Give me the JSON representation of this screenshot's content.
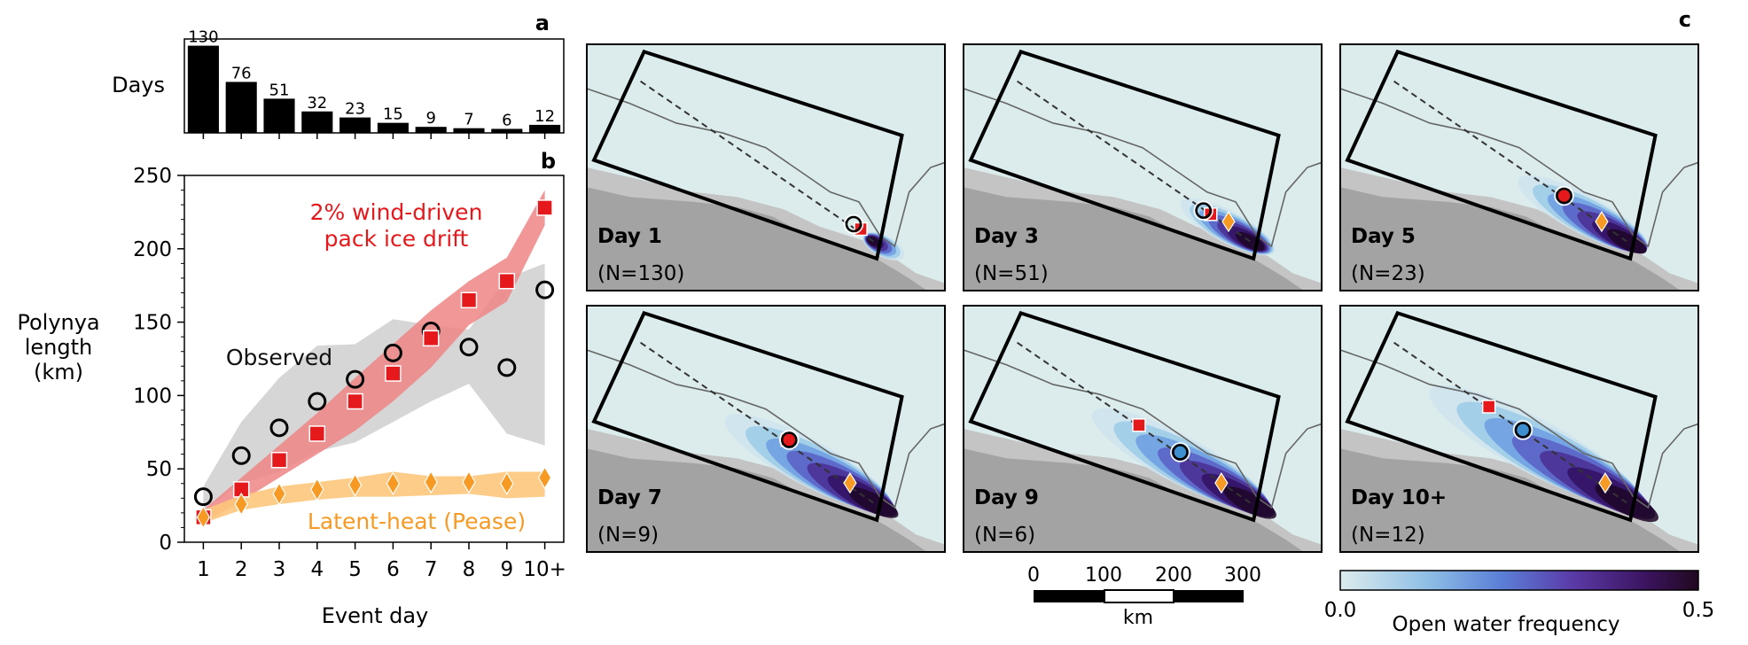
{
  "panel_letters": {
    "a": "a",
    "b": "b",
    "c": "c"
  },
  "colors": {
    "pack_ice": "#e5191c",
    "pack_band": "#f08585",
    "pease": "#f79a24",
    "pease_band": "#fcc77b",
    "observed_band": "#d2d2d2",
    "land": "#a3a3a3",
    "sea": "#dcecec"
  },
  "chart_data": [
    {
      "type": "bar",
      "panel": "a",
      "ylabel": "Days",
      "categories": [
        "1",
        "2",
        "3",
        "4",
        "5",
        "6",
        "7",
        "8",
        "9",
        "10+"
      ],
      "values": [
        130,
        76,
        51,
        32,
        23,
        15,
        9,
        7,
        6,
        12
      ],
      "ylim": [
        0,
        140
      ],
      "color": "#000000"
    },
    {
      "type": "line",
      "panel": "b",
      "xlabel": "Event day",
      "ylabel": "Polynya\nlength\n(km)",
      "ylim": [
        0,
        250
      ],
      "yticks": [
        0,
        50,
        100,
        150,
        200,
        250
      ],
      "x": [
        "1",
        "2",
        "3",
        "4",
        "5",
        "6",
        "7",
        "8",
        "9",
        "10+"
      ],
      "series": [
        {
          "name": "Observed",
          "marker": "open-circle",
          "values": [
            31,
            59,
            78,
            96,
            111,
            129,
            144,
            133,
            119,
            172
          ],
          "band_low": [
            22,
            40,
            48,
            62,
            68,
            82,
            96,
            108,
            74,
            66
          ],
          "band_high": [
            38,
            82,
            112,
            134,
            135,
            152,
            148,
            145,
            180,
            190
          ]
        },
        {
          "name": "2% wind-driven\npack ice drift",
          "marker": "square",
          "values": [
            17,
            36,
            56,
            74,
            96,
            115,
            139,
            165,
            178,
            228
          ],
          "band_low": [
            13,
            28,
            44,
            60,
            76,
            96,
            119,
            148,
            164,
            216
          ],
          "band_high": [
            22,
            44,
            66,
            88,
            112,
            135,
            158,
            178,
            194,
            240
          ]
        },
        {
          "name": "Latent-heat (Pease)",
          "marker": "diamond",
          "values": [
            17,
            26,
            33,
            36,
            39,
            40,
            41,
            41,
            40,
            44
          ],
          "band_low": [
            13,
            22,
            26,
            29,
            31,
            31,
            32,
            33,
            30,
            31
          ],
          "band_high": [
            22,
            32,
            38,
            41,
            44,
            48,
            45,
            45,
            48,
            48
          ]
        }
      ],
      "labels": {
        "observed": "Observed",
        "pack_line1": "2% wind-driven",
        "pack_line2": "pack ice drift",
        "pease": "Latent-heat (Pease)"
      }
    }
  ],
  "maps": [
    {
      "day_label": "Day 1",
      "n_label": "(N=130)"
    },
    {
      "day_label": "Day 3",
      "n_label": "(N=51)"
    },
    {
      "day_label": "Day 5",
      "n_label": "(N=23)"
    },
    {
      "day_label": "Day 7",
      "n_label": "(N=9)"
    },
    {
      "day_label": "Day 9",
      "n_label": "(N=6)"
    },
    {
      "day_label": "Day 10+",
      "n_label": "(N=12)"
    }
  ],
  "scale_bar": {
    "ticks": [
      "0",
      "100",
      "200",
      "300"
    ],
    "unit": "km"
  },
  "colorbar": {
    "min": "0.0",
    "max": "0.5",
    "label": "Open water frequency"
  },
  "ylabel_lines": [
    "Polynya",
    "length",
    "(km)"
  ]
}
